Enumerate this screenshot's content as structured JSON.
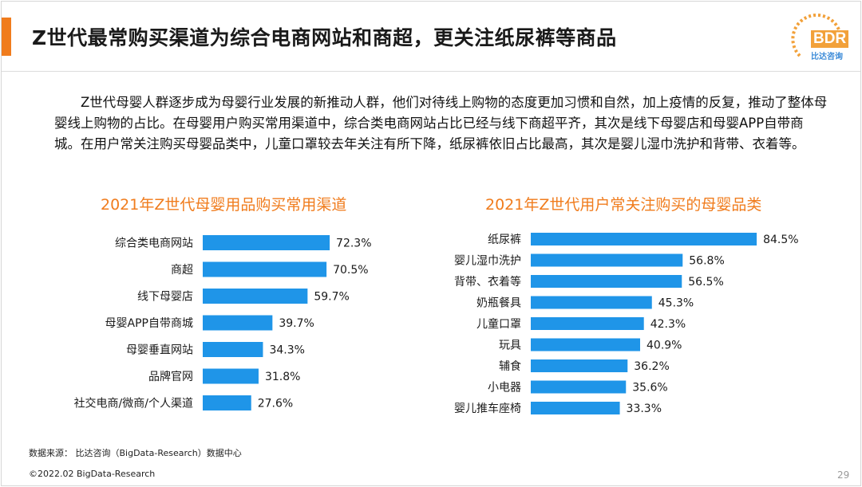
{
  "header": {
    "title": "Z世代最常购买渠道为综合电商网站和商超，更关注纸尿裤等商品",
    "logo_text": "BDR",
    "logo_sub": "比达咨询"
  },
  "body": {
    "paragraph": "Z世代母婴人群逐步成为母婴行业发展的新推动人群，他们对待线上购物的态度更加习惯和自然，加上疫情的反复，推动了整体母婴线上购物的占比。在母婴用户购买常用渠道中，综合类电商网站占比已经与线下商超平齐，其次是线下母婴店和母婴APP自带商城。在用户常关注购买母婴品类中，儿童口罩较去年关注有所下降，纸尿裤依旧占比最高，其次是婴儿湿巾洗护和背带、衣着等。"
  },
  "colors": {
    "accent": "#f07c1d",
    "bar": "#1f95e8",
    "chart_title": "#f07c1d"
  },
  "chart_data": [
    {
      "type": "bar",
      "orientation": "horizontal",
      "title": "2021年Z世代母婴用品购买常用渠道",
      "categories": [
        "综合类电商网站",
        "商超",
        "线下母婴店",
        "母婴APP自带商城",
        "母婴垂直网站",
        "品牌官网",
        "社交电商/微商/个人渠道"
      ],
      "values": [
        72.3,
        70.5,
        59.7,
        39.7,
        34.3,
        31.8,
        27.6
      ],
      "labels": [
        "72.3%",
        "70.5%",
        "59.7%",
        "39.7%",
        "34.3%",
        "31.8%",
        "27.6%"
      ],
      "unit": "%",
      "xlim": [
        0,
        100
      ],
      "grid": false
    },
    {
      "type": "bar",
      "orientation": "horizontal",
      "title": "2021年Z世代用户常关注购买的母婴品类",
      "categories": [
        "纸尿裤",
        "婴儿湿巾洗护",
        "背带、衣着等",
        "奶瓶餐具",
        "儿童口罩",
        "玩具",
        "辅食",
        "小电器",
        "婴儿推车座椅"
      ],
      "values": [
        84.5,
        56.8,
        56.5,
        45.3,
        42.3,
        40.9,
        36.2,
        35.6,
        33.3
      ],
      "labels": [
        "84.5%",
        "56.8%",
        "56.5%",
        "45.3%",
        "42.3%",
        "40.9%",
        "36.2%",
        "35.6%",
        "33.3%"
      ],
      "unit": "%",
      "xlim": [
        0,
        100
      ],
      "grid": false
    }
  ],
  "footer": {
    "source": "数据来源： 比达咨询（BigData-Research）数据中心",
    "copyright": "©2022.02 BigData-Research",
    "page": "29"
  }
}
